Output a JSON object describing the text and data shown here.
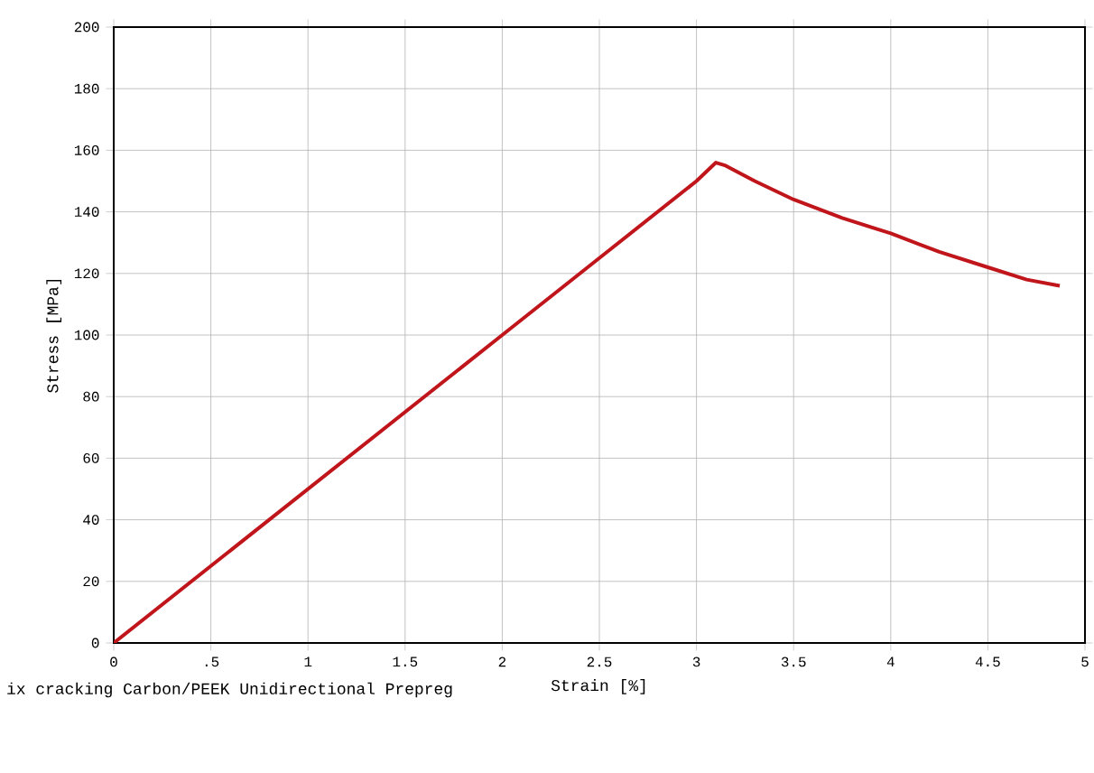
{
  "chart_data": {
    "type": "line",
    "xlabel": "Strain [%]",
    "ylabel": "Stress [MPa]",
    "x": [
      0,
      0.5,
      1,
      1.5,
      2,
      2.5,
      3,
      3.1,
      3.15,
      3.3,
      3.5,
      3.75,
      4,
      4.25,
      4.5,
      4.7,
      4.87
    ],
    "series": [
      {
        "color": "#c0161b",
        "values": [
          0,
          25,
          50,
          75,
          100,
          125,
          150,
          156,
          155,
          150,
          144,
          138,
          133,
          127,
          122,
          118,
          116
        ]
      }
    ],
    "xlim": [
      0,
      5
    ],
    "ylim": [
      0,
      200
    ],
    "xticks": [
      0,
      {
        "value": 0.5,
        "label": ".5"
      },
      1,
      1.5,
      2,
      2.5,
      3,
      3.5,
      4,
      4.5,
      5
    ],
    "yticks": [
      0,
      20,
      40,
      60,
      80,
      100,
      120,
      140,
      160,
      180,
      200
    ],
    "grid": true,
    "marker": "none",
    "line_style": "solid",
    "annotations": [
      "ix cracking Carbon/PEEK Unidirectional Prepreg"
    ]
  }
}
